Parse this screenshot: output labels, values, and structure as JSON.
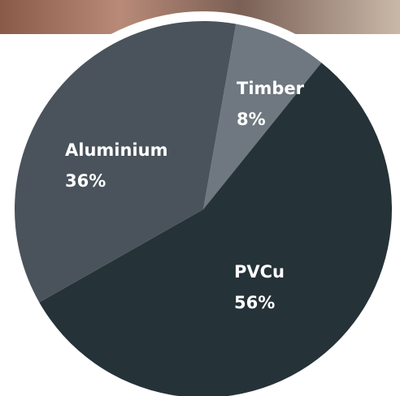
{
  "chart_data": {
    "type": "pie",
    "categories": [
      "Timber",
      "PVCu",
      "Aluminium"
    ],
    "values": [
      8,
      56,
      36
    ],
    "value_labels": [
      "8%",
      "56%",
      "36%"
    ],
    "colors": [
      "#6f7880",
      "#253238",
      "#4a535b"
    ]
  }
}
